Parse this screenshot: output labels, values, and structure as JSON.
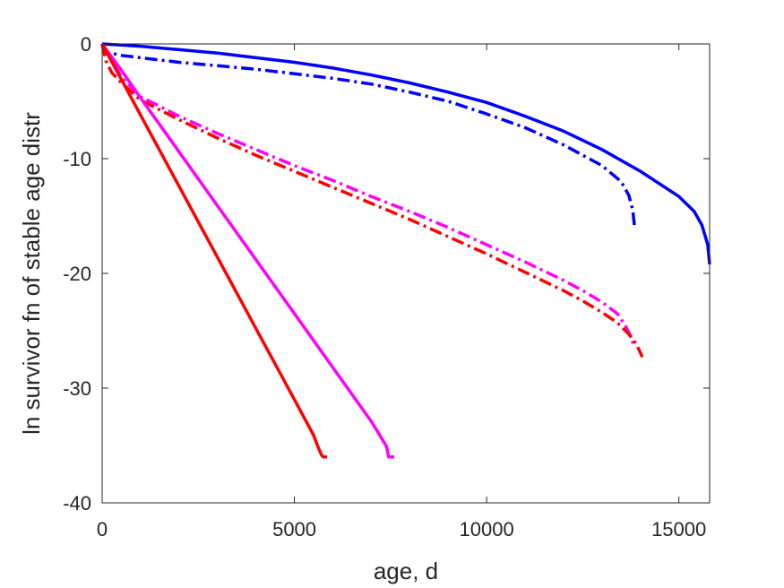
{
  "chart_data": {
    "type": "line",
    "xlabel": "age, d",
    "ylabel": "ln survivor fn of stable age distr",
    "xlim": [
      0,
      15800
    ],
    "ylim": [
      -40,
      0
    ],
    "xticks": [
      0,
      5000,
      10000,
      15000
    ],
    "yticks": [
      0,
      -10,
      -20,
      -30,
      -40
    ],
    "xtick_labels": [
      "0",
      "5000",
      "10000",
      "15000"
    ],
    "ytick_labels": [
      "0",
      "-10",
      "-20",
      "-30",
      "-40"
    ],
    "grid": false,
    "legend": "none",
    "series": [
      {
        "color": "#0000ff",
        "style": "solid",
        "x": [
          0,
          1000,
          2000,
          3000,
          4000,
          5000,
          6000,
          7000,
          8000,
          9000,
          10000,
          11000,
          12000,
          13000,
          14000,
          15000,
          15400,
          15600,
          15750,
          15800
        ],
        "y": [
          0,
          -0.2,
          -0.5,
          -0.8,
          -1.2,
          -1.6,
          -2.1,
          -2.7,
          -3.4,
          -4.2,
          -5.1,
          -6.3,
          -7.6,
          -9.2,
          -11.1,
          -13.3,
          -14.6,
          -15.8,
          -17.5,
          -19.2
        ]
      },
      {
        "color": "#0000ff",
        "style": "dashdot",
        "x": [
          0,
          100,
          500,
          1000,
          2000,
          3000,
          4000,
          5000,
          6000,
          7000,
          8000,
          9000,
          10000,
          11000,
          12000,
          13000,
          13500,
          13700,
          13800,
          13850
        ],
        "y": [
          0,
          -0.7,
          -1.0,
          -1.2,
          -1.6,
          -1.9,
          -2.2,
          -2.6,
          -3.0,
          -3.5,
          -4.2,
          -5.0,
          -6.1,
          -7.3,
          -8.8,
          -10.6,
          -12.0,
          -13.2,
          -14.5,
          -16.0
        ]
      },
      {
        "color": "#ff00ff",
        "style": "dashdot",
        "x": [
          0,
          100,
          250,
          500,
          1000,
          2000,
          3000,
          4000,
          5000,
          6000,
          7000,
          8000,
          9000,
          10000,
          11000,
          12000,
          12500,
          13000,
          13400,
          13600,
          13750,
          13850
        ],
        "y": [
          0,
          -0.5,
          -1.5,
          -2.9,
          -4.6,
          -6.3,
          -7.8,
          -9.2,
          -10.6,
          -11.9,
          -13.3,
          -14.6,
          -16.0,
          -17.5,
          -19.0,
          -20.6,
          -21.5,
          -22.5,
          -23.5,
          -24.5,
          -25.5,
          -26.5
        ]
      },
      {
        "color": "#ff0000",
        "style": "dashdot",
        "x": [
          0,
          100,
          250,
          500,
          1000,
          2000,
          3000,
          4000,
          5000,
          6000,
          7000,
          8000,
          9000,
          10000,
          11000,
          12000,
          12500,
          13000,
          13400,
          13700,
          13900,
          14050
        ],
        "y": [
          0,
          -1.5,
          -2.5,
          -3.4,
          -4.9,
          -6.6,
          -8.2,
          -9.7,
          -11.1,
          -12.5,
          -13.9,
          -15.3,
          -16.8,
          -18.3,
          -19.9,
          -21.5,
          -22.4,
          -23.4,
          -24.3,
          -25.3,
          -26.2,
          -27.3
        ]
      },
      {
        "color": "#ff00ff",
        "style": "solid",
        "x": [
          0,
          500,
          1000,
          2000,
          3000,
          4000,
          5000,
          6000,
          7000,
          7200,
          7400,
          7450,
          7600
        ],
        "y": [
          0,
          -2.3,
          -4.7,
          -9.4,
          -14.1,
          -18.8,
          -23.5,
          -28.2,
          -32.9,
          -34.0,
          -35.1,
          -36.0,
          -36.0
        ]
      },
      {
        "color": "#ff0000",
        "style": "solid",
        "x": [
          0,
          500,
          1000,
          2000,
          3000,
          4000,
          5000,
          5500,
          5600,
          5700,
          5750,
          5850
        ],
        "y": [
          0,
          -3.1,
          -6.2,
          -12.4,
          -18.6,
          -24.8,
          -31.0,
          -34.1,
          -35.0,
          -35.8,
          -36.0,
          -36.0
        ]
      }
    ]
  }
}
